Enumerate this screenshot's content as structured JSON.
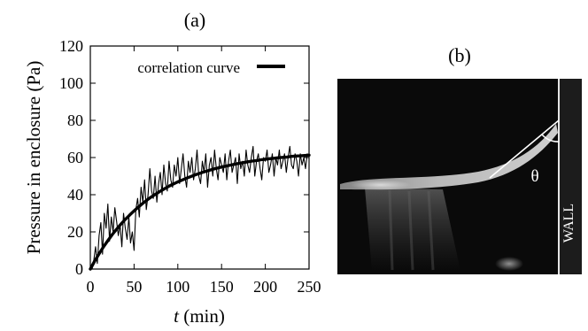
{
  "panel_a": {
    "label": "(a)",
    "legend_label": "correlation curve"
  },
  "panel_b": {
    "label": "(b)",
    "angle_label": "θ",
    "wall_label": "WALL"
  },
  "chart_data": {
    "type": "line",
    "xlabel_italic": "t",
    "xlabel_rest": " (min)",
    "ylabel": "Pressure in enclosure (Pa)",
    "xlim": [
      0,
      250
    ],
    "ylim": [
      0,
      120
    ],
    "x_ticks": [
      0,
      50,
      100,
      150,
      200,
      250
    ],
    "y_ticks": [
      0,
      20,
      40,
      60,
      80,
      100,
      120
    ],
    "grid": false,
    "legend_position": "top-left",
    "series": [
      {
        "name": "",
        "style": "thin-noisy",
        "x": [
          0,
          2,
          4,
          6,
          8,
          10,
          12,
          14,
          16,
          18,
          20,
          22,
          24,
          26,
          28,
          30,
          32,
          34,
          36,
          38,
          40,
          42,
          44,
          46,
          48,
          50,
          52,
          54,
          56,
          58,
          60,
          62,
          64,
          66,
          68,
          70,
          72,
          74,
          76,
          78,
          80,
          82,
          84,
          86,
          88,
          90,
          92,
          94,
          96,
          98,
          100,
          102,
          104,
          106,
          108,
          110,
          112,
          114,
          116,
          118,
          120,
          122,
          124,
          126,
          128,
          130,
          132,
          134,
          136,
          138,
          140,
          142,
          144,
          146,
          148,
          150,
          152,
          154,
          156,
          158,
          160,
          162,
          164,
          166,
          168,
          170,
          172,
          174,
          176,
          178,
          180,
          182,
          184,
          186,
          188,
          190,
          192,
          194,
          196,
          198,
          200,
          202,
          204,
          206,
          208,
          210,
          212,
          214,
          216,
          218,
          220,
          222,
          224,
          226,
          228,
          230,
          232,
          234,
          236,
          238,
          240,
          242,
          244,
          246,
          248
        ],
        "y": [
          2,
          0,
          5,
          12,
          3,
          18,
          25,
          8,
          30,
          22,
          35,
          15,
          28,
          20,
          33,
          26,
          18,
          24,
          12,
          30,
          22,
          16,
          28,
          14,
          20,
          10,
          32,
          38,
          28,
          44,
          36,
          48,
          32,
          40,
          54,
          42,
          38,
          50,
          36,
          46,
          52,
          40,
          56,
          46,
          42,
          58,
          48,
          44,
          56,
          50,
          60,
          46,
          54,
          62,
          50,
          44,
          58,
          52,
          60,
          48,
          54,
          64,
          50,
          46,
          58,
          52,
          62,
          44,
          56,
          60,
          50,
          64,
          54,
          48,
          60,
          56,
          52,
          62,
          48,
          58,
          64,
          52,
          56,
          60,
          46,
          62,
          54,
          58,
          50,
          64,
          56,
          52,
          60,
          66,
          50,
          58,
          62,
          54,
          48,
          60,
          58,
          64,
          52,
          56,
          62,
          50,
          60,
          56,
          64,
          54,
          58,
          62,
          52,
          60,
          66,
          56,
          54,
          62,
          58,
          50,
          62,
          56,
          60,
          54,
          62
        ]
      },
      {
        "name": "correlation curve",
        "style": "thick-smooth",
        "x": [
          0,
          5,
          10,
          15,
          20,
          25,
          30,
          35,
          40,
          45,
          50,
          55,
          60,
          65,
          70,
          75,
          80,
          85,
          90,
          95,
          100,
          105,
          110,
          115,
          120,
          125,
          130,
          135,
          140,
          145,
          150,
          155,
          160,
          165,
          170,
          175,
          180,
          185,
          190,
          195,
          200,
          205,
          210,
          215,
          220,
          225,
          230,
          235,
          240,
          245,
          250
        ],
        "y": [
          0,
          4.3,
          8.2,
          11.9,
          15.3,
          18.5,
          21.4,
          24.2,
          26.7,
          29.1,
          31.3,
          33.4,
          35.4,
          37.2,
          38.9,
          40.4,
          41.9,
          43.3,
          44.6,
          45.8,
          46.9,
          47.9,
          48.9,
          49.8,
          50.7,
          51.5,
          52.3,
          53.0,
          53.7,
          54.3,
          54.9,
          55.4,
          55.9,
          56.4,
          56.9,
          57.3,
          57.7,
          58.1,
          58.4,
          58.8,
          59.1,
          59.4,
          59.6,
          59.9,
          60.1,
          60.3,
          60.6,
          60.8,
          60.9,
          61.1,
          61.3
        ]
      }
    ]
  }
}
